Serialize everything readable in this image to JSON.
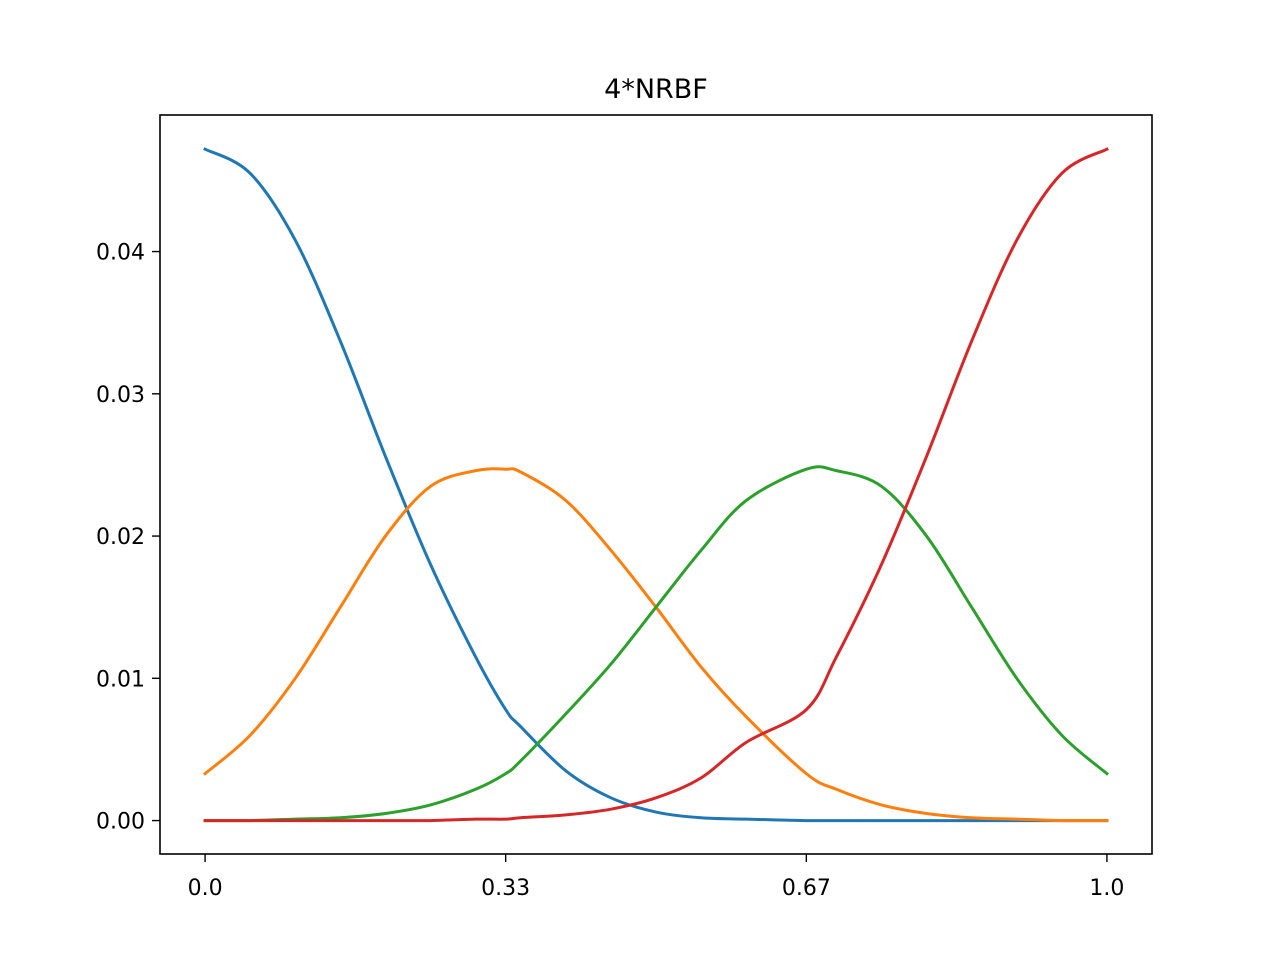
{
  "chart_data": {
    "type": "line",
    "title": "4*NRBF",
    "xlabel": "",
    "ylabel": "",
    "xlim": [
      -0.05,
      1.05
    ],
    "ylim": [
      -0.00235,
      0.0496
    ],
    "grid": false,
    "legend": "none",
    "x_ticks": [
      {
        "value": 0.0,
        "label": "0.0"
      },
      {
        "value": 0.3333,
        "label": "0.33"
      },
      {
        "value": 0.6667,
        "label": "0.67"
      },
      {
        "value": 1.0,
        "label": "1.0"
      }
    ],
    "y_ticks": [
      {
        "value": 0.0,
        "label": "0.00"
      },
      {
        "value": 0.01,
        "label": "0.01"
      },
      {
        "value": 0.02,
        "label": "0.02"
      },
      {
        "value": 0.03,
        "label": "0.03"
      },
      {
        "value": 0.04,
        "label": "0.04"
      }
    ],
    "x": [
      0.0,
      0.05,
      0.1,
      0.15,
      0.2,
      0.25,
      0.3,
      0.3333,
      0.35,
      0.4,
      0.45,
      0.5,
      0.55,
      0.6,
      0.6667,
      0.7,
      0.75,
      0.8,
      0.85,
      0.9,
      0.95,
      1.0
    ],
    "series": [
      {
        "color": "#1f77b4",
        "values": [
          0.0472,
          0.0455,
          0.0408,
          0.0337,
          0.0256,
          0.018,
          0.0115,
          0.0078,
          0.0066,
          0.0035,
          0.0016,
          0.0006,
          0.0002,
          0.0001,
          0.0,
          0.0,
          0.0,
          0.0,
          0.0,
          0.0,
          0.0,
          0.0
        ]
      },
      {
        "color": "#ff7f0e",
        "values": [
          0.0033,
          0.006,
          0.01,
          0.015,
          0.02,
          0.0235,
          0.0246,
          0.0247,
          0.0245,
          0.0225,
          0.019,
          0.015,
          0.0108,
          0.0073,
          0.0033,
          0.0022,
          0.0011,
          0.0005,
          0.0002,
          0.0001,
          0.0,
          0.0
        ]
      },
      {
        "color": "#2ca02c",
        "values": [
          0.0,
          0.0,
          0.0001,
          0.0002,
          0.0005,
          0.0011,
          0.0022,
          0.0033,
          0.0042,
          0.0075,
          0.011,
          0.015,
          0.019,
          0.0225,
          0.0247,
          0.0246,
          0.0235,
          0.02,
          0.015,
          0.01,
          0.006,
          0.0033
        ]
      },
      {
        "color": "#d62728",
        "values": [
          0.0,
          0.0,
          0.0,
          0.0,
          0.0,
          0.0,
          0.0001,
          0.0001,
          0.0002,
          0.0004,
          0.0008,
          0.0016,
          0.003,
          0.0055,
          0.0078,
          0.0115,
          0.018,
          0.0256,
          0.0337,
          0.0408,
          0.0455,
          0.0472
        ]
      }
    ]
  }
}
